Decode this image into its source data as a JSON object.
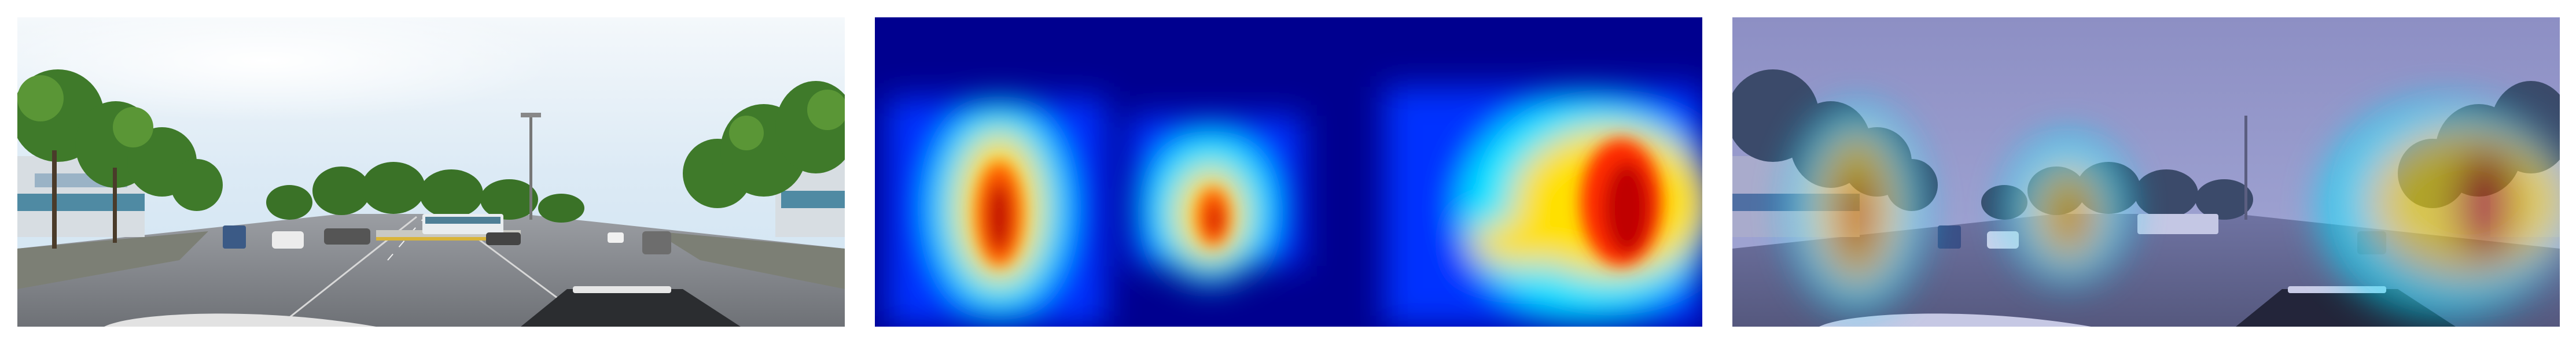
{
  "figure": {
    "panels": [
      {
        "id": "original-panorama",
        "content": "street-panorama"
      },
      {
        "id": "attention-heatmap",
        "content": "jet-colormap-heatmap"
      },
      {
        "id": "heatmap-overlay",
        "content": "street-panorama-with-heatmap"
      }
    ],
    "colors": {
      "heat_low": "#00008f",
      "heat_mid": "#00e5ff",
      "heat_warm": "#ffe000",
      "heat_high": "#c00000",
      "sky": "#dfeef8",
      "tree": "#3f7a2a",
      "road": "#8a8d93"
    },
    "hotspots": [
      {
        "label": "left-trees",
        "intensity": 1.0
      },
      {
        "label": "center-trees",
        "intensity": 0.85
      },
      {
        "label": "right-trees",
        "intensity": 1.0
      }
    ]
  }
}
